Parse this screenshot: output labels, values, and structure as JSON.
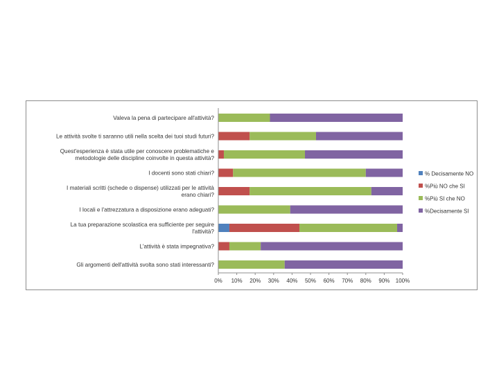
{
  "chart_data": {
    "type": "bar",
    "orientation": "horizontal",
    "stacked": "percent",
    "categories": [
      [
        "Valeva la pena di partecipare all'attività?"
      ],
      [
        "Le attività svolte ti saranno utili nella scelta dei tuoi studi futuri?"
      ],
      [
        "Quest'esperienza è stata utile per conoscere problematiche e",
        "metodologie delle discipline coinvolte in questa attività?"
      ],
      [
        "I docenti sono stati chiari?"
      ],
      [
        "I materiali scritti (schede o dispense) utilizzati per le attività",
        "erano chiari?"
      ],
      [
        "I locali e l'attrezzatura a disposizione erano adeguati?"
      ],
      [
        "La tua preparazione scolastica era sufficiente per seguire",
        "l'attività?"
      ],
      [
        "L'attività è stata impegnativa?"
      ],
      [
        "Gli argomenti dell'attività svolta sono stati interessanti?"
      ]
    ],
    "series": [
      {
        "name": "% Decisamente NO",
        "color": "#4f81bd",
        "values": [
          0,
          0,
          0,
          0,
          0,
          0,
          6,
          0,
          0
        ]
      },
      {
        "name": "%Più NO che SI",
        "color": "#c0504d",
        "values": [
          0,
          17,
          3,
          8,
          17,
          0,
          38,
          6,
          0
        ]
      },
      {
        "name": "%Più SI che NO",
        "color": "#9bbb59",
        "values": [
          28,
          36,
          44,
          72,
          66,
          39,
          53,
          17,
          36
        ]
      },
      {
        "name": "%Decisamente SI",
        "color": "#8064a2",
        "values": [
          72,
          47,
          53,
          20,
          17,
          61,
          3,
          77,
          64
        ]
      }
    ],
    "x_ticks": [
      "0%",
      "10%",
      "20%",
      "30%",
      "40%",
      "50%",
      "60%",
      "70%",
      "80%",
      "90%",
      "100%"
    ],
    "xlim": [
      0,
      100
    ],
    "grid": false,
    "legend_position": "right"
  }
}
